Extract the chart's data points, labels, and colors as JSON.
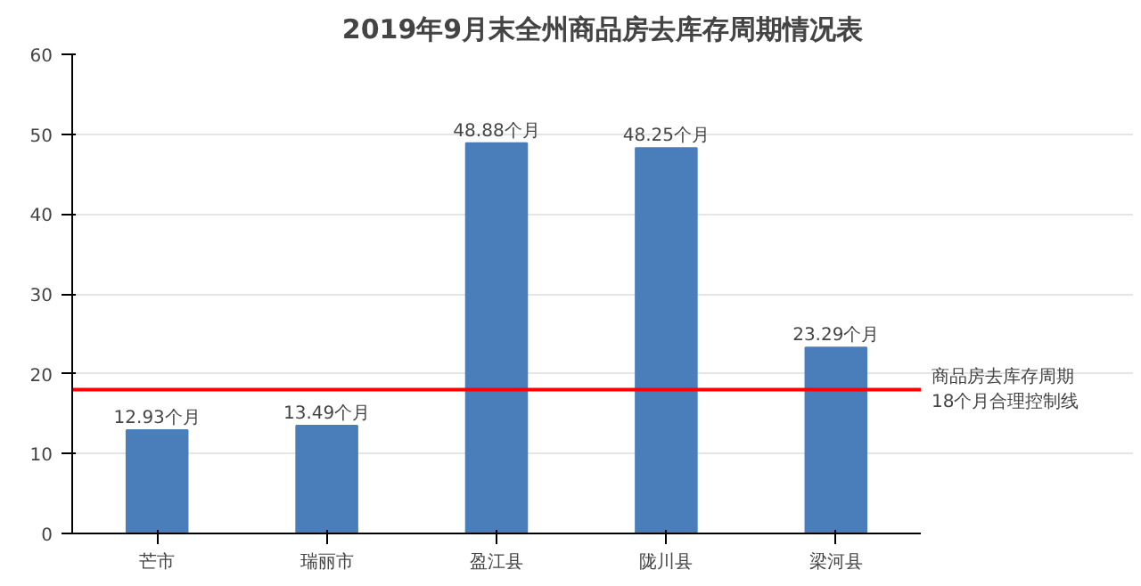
{
  "chart_data": {
    "type": "bar",
    "title": "2019年9月末全州商品房去库存周期情况表",
    "categories": [
      "芒市",
      "瑞丽市",
      "盈江县",
      "陇川县",
      "梁河县"
    ],
    "values": [
      12.93,
      13.49,
      48.88,
      48.25,
      23.29
    ],
    "value_labels": [
      "12.93个月",
      "13.49个月",
      "48.88个月",
      "48.25个月",
      "23.29个月"
    ],
    "color": "#4a7ebb",
    "ylim": [
      0,
      60
    ],
    "yticks": [
      0,
      10,
      20,
      30,
      40,
      50,
      60
    ],
    "grid": "y",
    "ref_lines": [
      {
        "axis": "y",
        "value": 18,
        "label": "商品房去库存周期\n18个月合理控制线",
        "color": "#ff0000",
        "line_style": "solid"
      }
    ]
  }
}
